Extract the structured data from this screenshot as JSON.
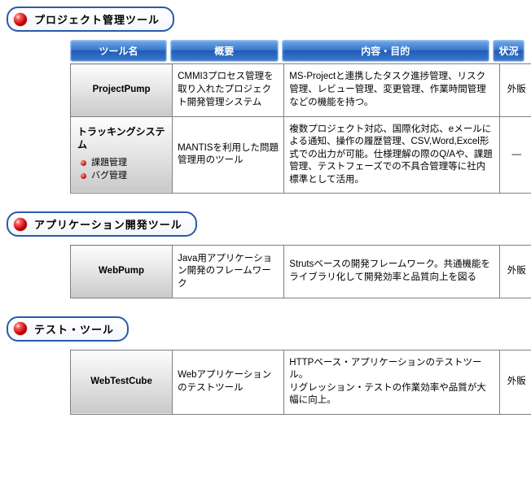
{
  "headers": {
    "name": "ツール名",
    "overview": "概要",
    "detail": "内容・目的",
    "status": "状況"
  },
  "sections": [
    {
      "title": "プロジェクト管理ツール",
      "rows": [
        {
          "name": "ProjectPump",
          "overview": "CMMI3プロセス管理を取り入れたプロジェクト開発管理システム",
          "detail": "MS-Projectと連携したタスク進捗管理、リスク管理、レビュー管理、変更管理、作業時間管理などの機能を持つ。",
          "status": "外販"
        },
        {
          "name_title": "トラッキングシステム",
          "sub_items": [
            "課題管理",
            "バグ管理"
          ],
          "overview": "MANTISを利用した問題管理用のツール",
          "detail": "複数プロジェクト対応、国際化対応、eメールによる通知、操作の履歴管理、CSV,Word,Excel形式での出力が可能。仕様理解の際のQ/Aや、課題管理、テストフェーズでの不具合管理等に社内標準として活用。",
          "status": "―"
        }
      ]
    },
    {
      "title": "アプリケーション開発ツール",
      "rows": [
        {
          "name": "WebPump",
          "overview": "Java用アプリケーション開発のフレームワーク",
          "detail": "Strutsベースの開発フレームワーク。共通機能をライブラリ化して開発効率と品質向上を図る",
          "status": "外販"
        }
      ]
    },
    {
      "title": "テスト・ツール",
      "rows": [
        {
          "name": "WebTestCube",
          "overview": "Webアプリケーションのテストツール",
          "detail": "HTTPベース・アプリケーションのテストツール。\nリグレッション・テストの作業効率や品質が大幅に向上。",
          "status": "外販"
        }
      ]
    }
  ]
}
